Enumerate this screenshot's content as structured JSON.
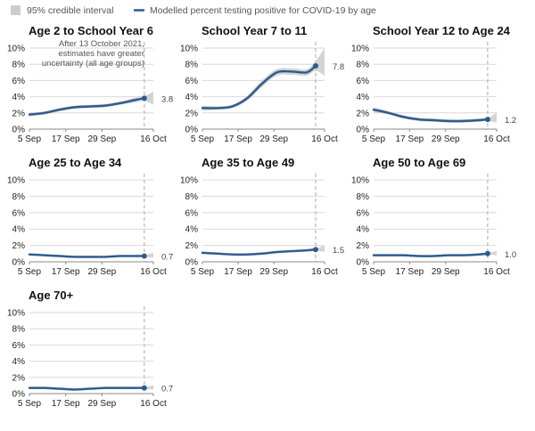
{
  "legend": {
    "band_label": "95% credible interval",
    "line_label": "Modelled percent testing positive for COVID-19 by age"
  },
  "colors": {
    "line": "#2e5c8f",
    "band": "#cccccc",
    "grid": "#d8d8d8",
    "axis": "#888888",
    "marker_line": "#aaaaaa"
  },
  "annotation": {
    "lines": [
      "After 13 October 2021,",
      "estimates have greater",
      "uncertainty (all age groups)"
    ]
  },
  "chart_data": [
    {
      "type": "line",
      "title": "Age 2 to School Year 6",
      "ylim": [
        0,
        10
      ],
      "y_ticks": [
        "0%",
        "2%",
        "4%",
        "6%",
        "8%",
        "10%"
      ],
      "x_ticks": [
        "5 Sep",
        "17 Sep",
        "29 Sep",
        "16 Oct"
      ],
      "x": [
        "5 Sep",
        "10 Sep",
        "15 Sep",
        "20 Sep",
        "25 Sep",
        "30 Sep",
        "5 Oct",
        "10 Oct",
        "13 Oct",
        "16 Oct"
      ],
      "series": [
        {
          "values": [
            1.8,
            2.0,
            2.4,
            2.7,
            2.8,
            2.9,
            3.2,
            3.6,
            3.8,
            3.8
          ]
        }
      ],
      "lower": [
        1.6,
        1.8,
        2.2,
        2.5,
        2.6,
        2.7,
        3.0,
        3.3,
        3.5,
        3.0
      ],
      "upper": [
        2.0,
        2.2,
        2.6,
        2.9,
        3.0,
        3.1,
        3.4,
        3.9,
        4.1,
        4.6
      ],
      "end_label": "3.8",
      "show_note": true
    },
    {
      "type": "line",
      "title": "School Year 7 to 11",
      "ylim": [
        0,
        10
      ],
      "y_ticks": [
        "0%",
        "2%",
        "4%",
        "6%",
        "8%",
        "10%"
      ],
      "x_ticks": [
        "5 Sep",
        "17 Sep",
        "29 Sep",
        "16 Oct"
      ],
      "x": [
        "5 Sep",
        "10 Sep",
        "15 Sep",
        "20 Sep",
        "25 Sep",
        "30 Sep",
        "5 Oct",
        "10 Oct",
        "13 Oct",
        "16 Oct"
      ],
      "series": [
        {
          "values": [
            2.6,
            2.6,
            2.8,
            3.8,
            5.6,
            7.0,
            7.1,
            7.0,
            7.8,
            7.8
          ]
        }
      ],
      "lower": [
        2.3,
        2.4,
        2.6,
        3.5,
        5.2,
        6.6,
        6.7,
        6.6,
        7.2,
        6.6
      ],
      "upper": [
        2.9,
        2.8,
        3.0,
        4.1,
        6.0,
        7.4,
        7.5,
        7.4,
        8.4,
        10.0
      ],
      "end_label": "7.8",
      "show_note": false
    },
    {
      "type": "line",
      "title": "School Year 12 to Age 24",
      "ylim": [
        0,
        10
      ],
      "y_ticks": [
        "0%",
        "2%",
        "4%",
        "6%",
        "8%",
        "10%"
      ],
      "x_ticks": [
        "5 Sep",
        "17 Sep",
        "29 Sep",
        "16 Oct"
      ],
      "x": [
        "5 Sep",
        "10 Sep",
        "15 Sep",
        "20 Sep",
        "25 Sep",
        "30 Sep",
        "5 Oct",
        "10 Oct",
        "13 Oct",
        "16 Oct"
      ],
      "series": [
        {
          "values": [
            2.4,
            2.0,
            1.5,
            1.2,
            1.1,
            1.0,
            1.0,
            1.1,
            1.2,
            1.2
          ]
        }
      ],
      "lower": [
        2.1,
        1.8,
        1.3,
        1.0,
        0.9,
        0.8,
        0.8,
        0.9,
        1.0,
        0.8
      ],
      "upper": [
        2.7,
        2.2,
        1.7,
        1.4,
        1.3,
        1.2,
        1.2,
        1.3,
        1.4,
        2.0
      ],
      "end_label": "1.2",
      "show_note": false
    },
    {
      "type": "line",
      "title": "Age 25 to Age 34",
      "ylim": [
        0,
        10
      ],
      "y_ticks": [
        "0%",
        "2%",
        "4%",
        "6%",
        "8%",
        "10%"
      ],
      "x_ticks": [
        "5 Sep",
        "17 Sep",
        "29 Sep",
        "16 Oct"
      ],
      "x": [
        "5 Sep",
        "10 Sep",
        "15 Sep",
        "20 Sep",
        "25 Sep",
        "30 Sep",
        "5 Oct",
        "10 Oct",
        "13 Oct",
        "16 Oct"
      ],
      "series": [
        {
          "values": [
            0.9,
            0.8,
            0.7,
            0.6,
            0.6,
            0.6,
            0.7,
            0.7,
            0.7,
            0.7
          ]
        }
      ],
      "lower": [
        0.8,
        0.7,
        0.6,
        0.5,
        0.5,
        0.5,
        0.6,
        0.6,
        0.6,
        0.5
      ],
      "upper": [
        1.0,
        0.9,
        0.8,
        0.7,
        0.7,
        0.7,
        0.8,
        0.8,
        0.8,
        1.1
      ],
      "end_label": "0.7",
      "show_note": false
    },
    {
      "type": "line",
      "title": "Age 35 to Age 49",
      "ylim": [
        0,
        10
      ],
      "y_ticks": [
        "0%",
        "2%",
        "4%",
        "6%",
        "8%",
        "10%"
      ],
      "x_ticks": [
        "5 Sep",
        "17 Sep",
        "29 Sep",
        "16 Oct"
      ],
      "x": [
        "5 Sep",
        "10 Sep",
        "15 Sep",
        "20 Sep",
        "25 Sep",
        "30 Sep",
        "5 Oct",
        "10 Oct",
        "13 Oct",
        "16 Oct"
      ],
      "series": [
        {
          "values": [
            1.1,
            1.0,
            0.9,
            0.9,
            1.0,
            1.2,
            1.3,
            1.4,
            1.5,
            1.5
          ]
        }
      ],
      "lower": [
        1.0,
        0.9,
        0.8,
        0.8,
        0.9,
        1.1,
        1.2,
        1.3,
        1.4,
        1.2
      ],
      "upper": [
        1.2,
        1.1,
        1.0,
        1.0,
        1.1,
        1.3,
        1.4,
        1.5,
        1.6,
        2.0
      ],
      "end_label": "1.5",
      "show_note": false
    },
    {
      "type": "line",
      "title": "Age 50 to Age 69",
      "ylim": [
        0,
        10
      ],
      "y_ticks": [
        "0%",
        "2%",
        "4%",
        "6%",
        "8%",
        "10%"
      ],
      "x_ticks": [
        "5 Sep",
        "17 Sep",
        "29 Sep",
        "16 Oct"
      ],
      "x": [
        "5 Sep",
        "10 Sep",
        "15 Sep",
        "20 Sep",
        "25 Sep",
        "30 Sep",
        "5 Oct",
        "10 Oct",
        "13 Oct",
        "16 Oct"
      ],
      "series": [
        {
          "values": [
            0.8,
            0.8,
            0.8,
            0.7,
            0.7,
            0.8,
            0.8,
            0.9,
            1.0,
            1.0
          ]
        }
      ],
      "lower": [
        0.7,
        0.7,
        0.7,
        0.6,
        0.6,
        0.7,
        0.7,
        0.8,
        0.9,
        0.8
      ],
      "upper": [
        0.9,
        0.9,
        0.9,
        0.8,
        0.8,
        0.9,
        0.9,
        1.0,
        1.1,
        1.3
      ],
      "end_label": "1.0",
      "show_note": false
    },
    {
      "type": "line",
      "title": "Age 70+",
      "ylim": [
        0,
        10
      ],
      "y_ticks": [
        "0%",
        "2%",
        "4%",
        "6%",
        "8%",
        "10%"
      ],
      "x_ticks": [
        "5 Sep",
        "17 Sep",
        "29 Sep",
        "16 Oct"
      ],
      "x": [
        "5 Sep",
        "10 Sep",
        "15 Sep",
        "20 Sep",
        "25 Sep",
        "30 Sep",
        "5 Oct",
        "10 Oct",
        "13 Oct",
        "16 Oct"
      ],
      "series": [
        {
          "values": [
            0.7,
            0.7,
            0.6,
            0.5,
            0.6,
            0.7,
            0.7,
            0.7,
            0.7,
            0.7
          ]
        }
      ],
      "lower": [
        0.6,
        0.6,
        0.5,
        0.4,
        0.5,
        0.6,
        0.6,
        0.6,
        0.6,
        0.5
      ],
      "upper": [
        0.8,
        0.8,
        0.7,
        0.6,
        0.7,
        0.8,
        0.8,
        0.8,
        0.8,
        1.0
      ],
      "end_label": "0.7",
      "show_note": false
    }
  ]
}
